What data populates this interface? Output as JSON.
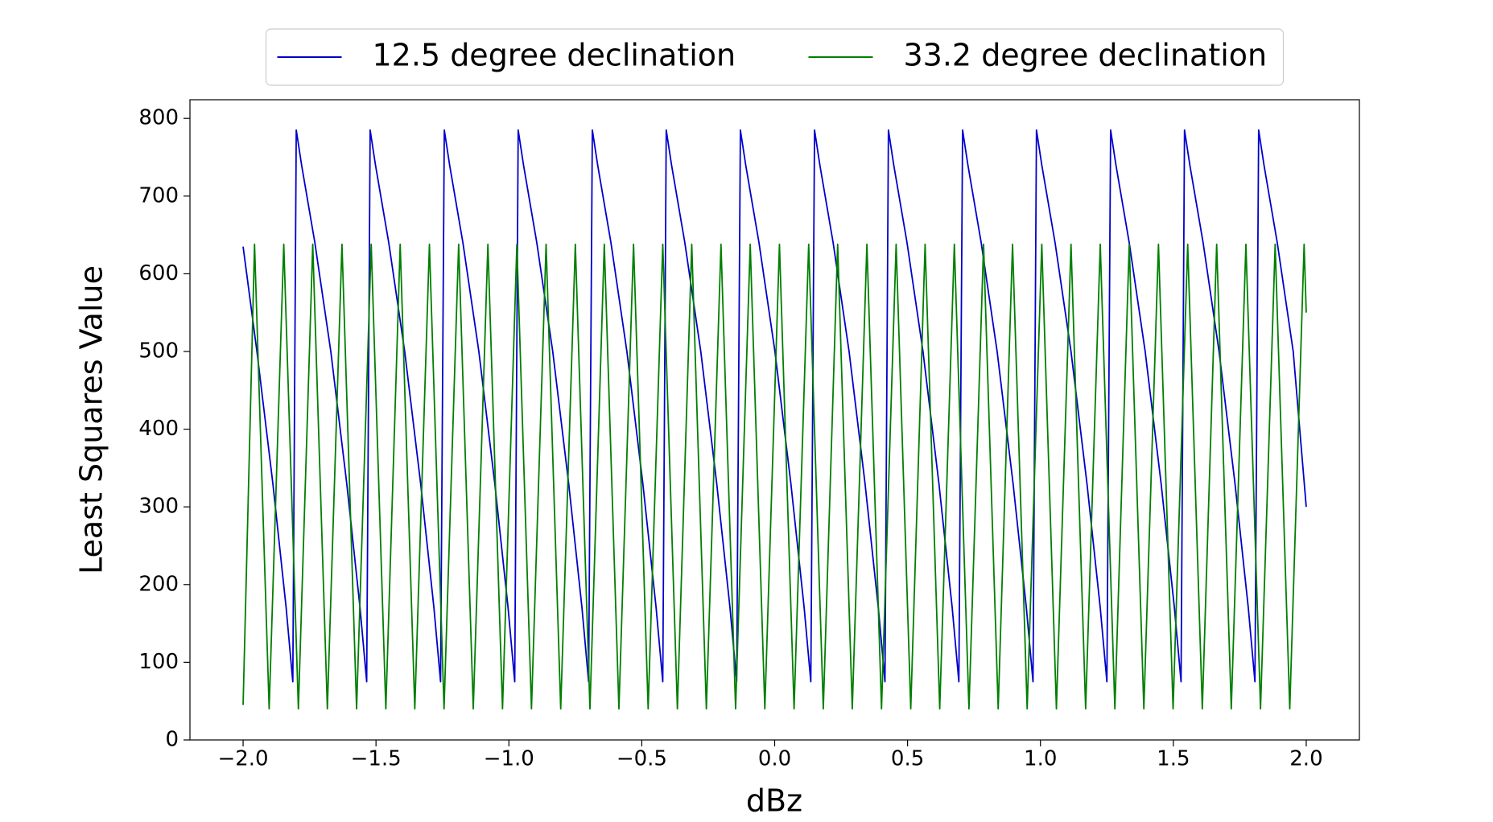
{
  "chart_data": {
    "type": "line",
    "xlabel": "dBz",
    "ylabel": "Least Squares Value",
    "xlim": [
      -2.2,
      2.2
    ],
    "ylim": [
      0,
      824
    ],
    "xticks": [
      {
        "value": -2.0,
        "label": "−2.0"
      },
      {
        "value": -1.5,
        "label": "−1.5"
      },
      {
        "value": -1.0,
        "label": "−1.0"
      },
      {
        "value": -0.5,
        "label": "−0.5"
      },
      {
        "value": 0,
        "label": "0.0"
      },
      0.5,
      {
        "value": 1.0,
        "label": "1.0"
      },
      1.5,
      {
        "value": 2.0,
        "label": "2.0"
      }
    ],
    "yticks": [
      0,
      100,
      200,
      300,
      400,
      500,
      600,
      700,
      800
    ],
    "grid": false,
    "legend": "upper center",
    "series": [
      {
        "name": "12.5 degree declination",
        "color": "#0000cc",
        "x": [
          -2.0,
          -1.948,
          -1.888,
          -1.838,
          -1.813,
          -1.8,
          -1.78,
          -1.73,
          -1.67,
          -1.61,
          -1.56,
          -1.535,
          -1.522,
          -1.502,
          -1.452,
          -1.392,
          -1.332,
          -1.282,
          -1.257,
          -1.243,
          -1.223,
          -1.173,
          -1.113,
          -1.053,
          -1.003,
          -0.978,
          -0.965,
          -0.945,
          -0.895,
          -0.835,
          -0.775,
          -0.725,
          -0.7,
          -0.686,
          -0.666,
          -0.616,
          -0.556,
          -0.496,
          -0.446,
          -0.421,
          -0.408,
          -0.388,
          -0.338,
          -0.278,
          -0.218,
          -0.168,
          -0.143,
          -0.129,
          -0.109,
          -0.059,
          0.001,
          0.061,
          0.111,
          0.136,
          0.15,
          0.17,
          0.22,
          0.28,
          0.34,
          0.39,
          0.415,
          0.428,
          0.448,
          0.498,
          0.558,
          0.618,
          0.668,
          0.693,
          0.707,
          0.727,
          0.777,
          0.837,
          0.897,
          0.947,
          0.972,
          0.985,
          1.005,
          1.055,
          1.115,
          1.175,
          1.225,
          1.25,
          1.264,
          1.284,
          1.334,
          1.394,
          1.454,
          1.504,
          1.529,
          1.542,
          1.562,
          1.612,
          1.672,
          1.732,
          1.782,
          1.807,
          1.821,
          1.841,
          1.891,
          1.951,
          2.0
        ],
        "values": [
          635,
          500,
          330,
          170,
          75,
          785,
          740,
          640,
          500,
          330,
          170,
          75,
          785,
          740,
          640,
          500,
          330,
          170,
          75,
          785,
          740,
          640,
          500,
          330,
          170,
          75,
          785,
          740,
          640,
          500,
          330,
          170,
          75,
          785,
          740,
          640,
          500,
          330,
          170,
          75,
          785,
          740,
          640,
          500,
          330,
          170,
          75,
          785,
          740,
          640,
          500,
          330,
          170,
          75,
          785,
          740,
          640,
          500,
          330,
          170,
          75,
          785,
          740,
          640,
          500,
          330,
          170,
          75,
          785,
          740,
          640,
          500,
          330,
          170,
          75,
          785,
          740,
          640,
          500,
          330,
          170,
          75,
          785,
          740,
          640,
          500,
          330,
          170,
          75,
          785,
          740,
          640,
          500,
          330,
          170,
          75,
          785,
          740,
          640,
          500,
          300
        ]
      },
      {
        "name": "33.2 degree declination",
        "color": "#007f00",
        "x": [
          -2.0,
          -1.957,
          -1.902,
          -1.847,
          -1.792,
          -1.738,
          -1.683,
          -1.628,
          -1.573,
          -1.518,
          -1.463,
          -1.409,
          -1.354,
          -1.299,
          -1.244,
          -1.189,
          -1.134,
          -1.079,
          -1.024,
          -0.97,
          -0.915,
          -0.86,
          -0.805,
          -0.75,
          -0.695,
          -0.641,
          -0.586,
          -0.531,
          -0.476,
          -0.421,
          -0.366,
          -0.312,
          -0.257,
          -0.202,
          -0.147,
          -0.092,
          -0.037,
          0.018,
          0.073,
          0.128,
          0.183,
          0.237,
          0.292,
          0.347,
          0.402,
          0.457,
          0.512,
          0.566,
          0.621,
          0.676,
          0.731,
          0.786,
          0.841,
          0.895,
          0.95,
          1.005,
          1.06,
          1.115,
          1.17,
          1.225,
          1.28,
          1.334,
          1.389,
          1.444,
          1.499,
          1.554,
          1.609,
          1.663,
          1.718,
          1.773,
          1.828,
          1.883,
          1.938,
          1.992,
          2.0
        ],
        "values": [
          45,
          638,
          40,
          638,
          40,
          638,
          40,
          638,
          40,
          638,
          40,
          638,
          40,
          638,
          40,
          638,
          40,
          638,
          40,
          638,
          40,
          638,
          40,
          638,
          40,
          638,
          40,
          638,
          40,
          638,
          40,
          638,
          40,
          638,
          40,
          638,
          40,
          638,
          40,
          638,
          40,
          638,
          40,
          638,
          40,
          638,
          40,
          638,
          40,
          638,
          40,
          638,
          40,
          638,
          40,
          638,
          40,
          638,
          40,
          638,
          40,
          638,
          40,
          638,
          40,
          638,
          40,
          638,
          40,
          638,
          40,
          638,
          40,
          638,
          550
        ]
      }
    ]
  }
}
